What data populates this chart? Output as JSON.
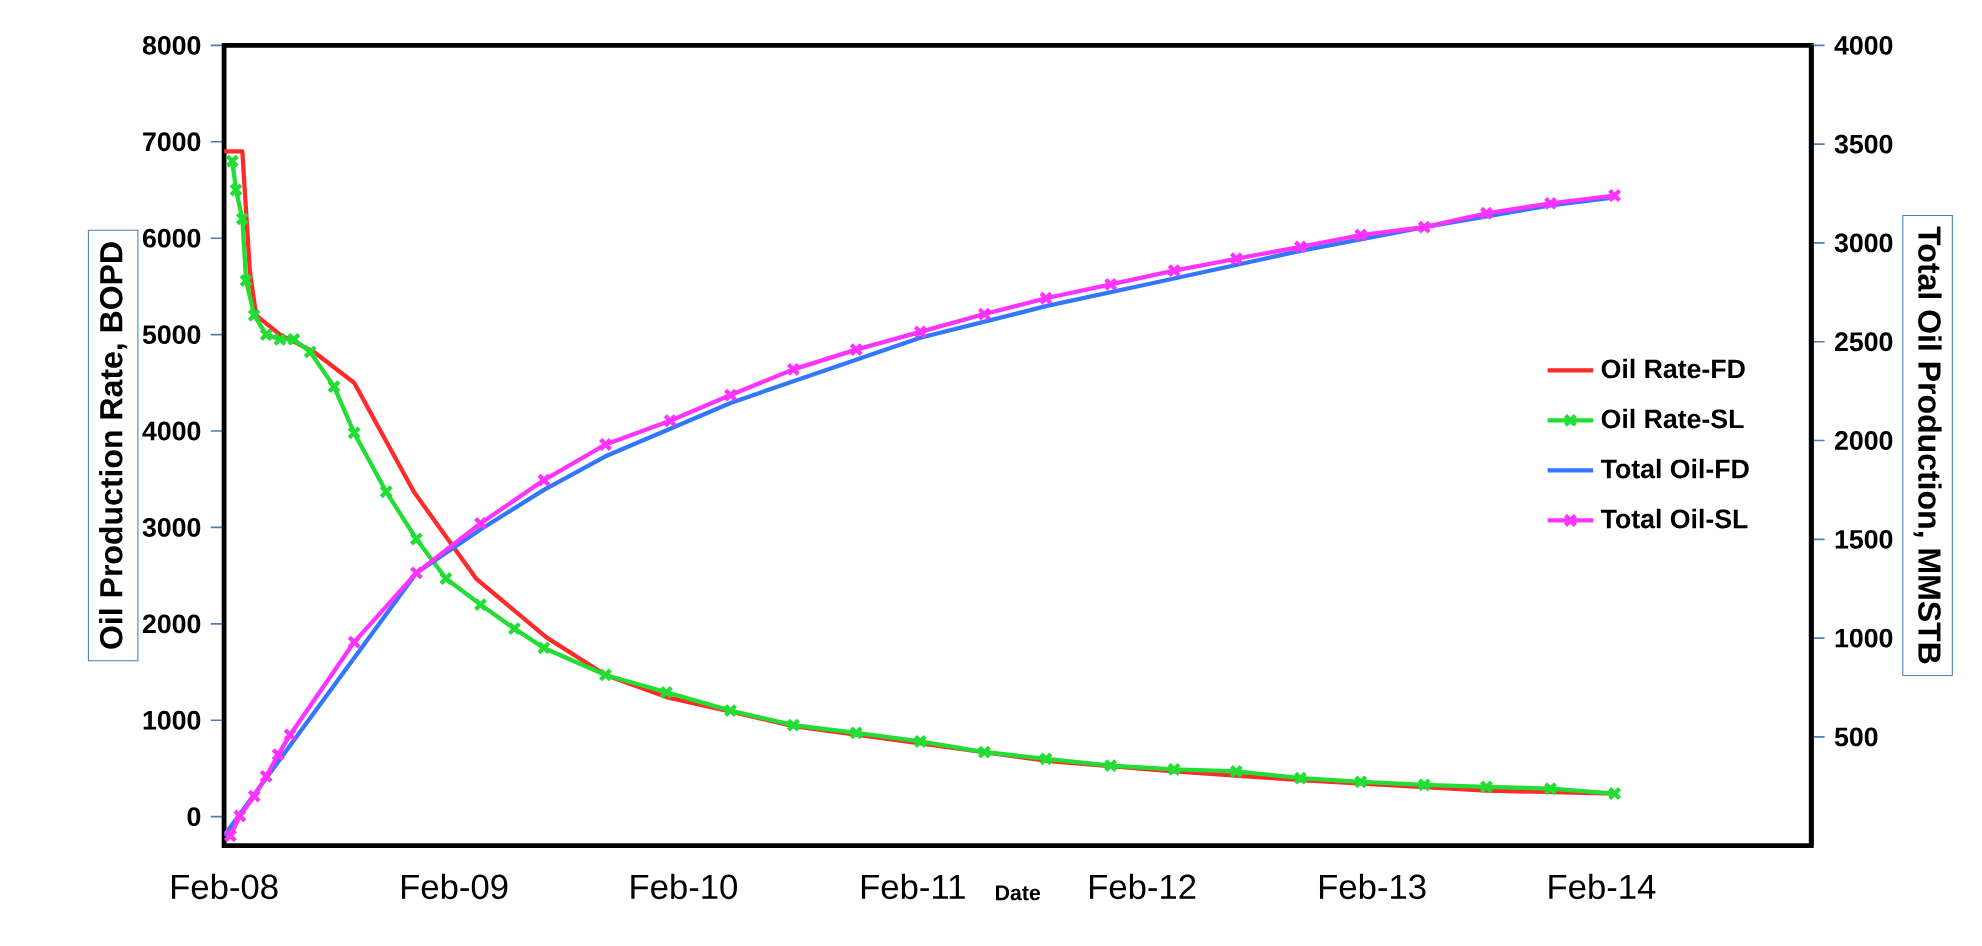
{
  "chart_data": {
    "type": "line",
    "xlabel": "Date",
    "ylabel": "Oil Production Rate, BOPD",
    "y2label": "Total Oil Production, MMSTB",
    "xlim": [
      "2008-02-01",
      "2015-01-01"
    ],
    "xticks": [
      {
        "value": "2008-02-01",
        "label": "Feb-08"
      },
      {
        "value": "2009-02-01",
        "label": "Feb-09"
      },
      {
        "value": "2010-02-01",
        "label": "Feb-10"
      },
      {
        "value": "2011-02-01",
        "label": "Feb-11"
      },
      {
        "value": "2012-02-01",
        "label": "Feb-12"
      },
      {
        "value": "2013-02-01",
        "label": "Feb-13"
      },
      {
        "value": "2014-02-01",
        "label": "Feb-14"
      }
    ],
    "ylim": [
      -300,
      8000
    ],
    "yticks": [
      0,
      1000,
      2000,
      3000,
      4000,
      5000,
      6000,
      7000,
      8000
    ],
    "y2lim": [
      -50,
      4000
    ],
    "y2ticks": [
      500,
      1000,
      1500,
      2000,
      2500,
      3000,
      3500,
      4000
    ],
    "legend": "right",
    "line_style": "solid",
    "series": [
      {
        "name": "Oil Rate-FD",
        "color": "#ff2a2a",
        "marker": "none",
        "x": [
          "2008-02-01",
          "2008-03-01",
          "2008-03-13",
          "2008-03-23",
          "2008-04-30",
          "2008-06-23",
          "2008-08-26",
          "2008-11-29",
          "2009-03-08",
          "2009-06-28",
          "2009-09-30",
          "2010-01-05",
          "2010-04-23",
          "2010-07-26",
          "2011-02-13",
          "2011-09-01",
          "2012-03-23",
          "2012-10-10",
          "2013-08-02",
          "2014-02-22"
        ],
        "values": [
          6900,
          6900,
          5660,
          5200,
          5000,
          4820,
          4500,
          3370,
          2470,
          1860,
          1470,
          1240,
          1080,
          940,
          760,
          580,
          470,
          380,
          270,
          240
        ]
      },
      {
        "name": "Oil Rate-SL",
        "color": "#22dd33",
        "marker": "cross",
        "x": [
          "2008-02-14",
          "2008-02-20",
          "2008-03-01",
          "2008-03-07",
          "2008-03-20",
          "2008-04-08",
          "2008-04-30",
          "2008-05-22",
          "2008-06-17",
          "2008-07-25",
          "2008-08-26",
          "2008-10-16",
          "2008-12-03",
          "2009-01-19",
          "2009-03-15",
          "2009-05-08",
          "2009-06-24",
          "2009-09-30",
          "2010-01-05",
          "2010-04-17",
          "2010-07-26",
          "2010-11-03",
          "2011-02-13",
          "2011-05-26",
          "2011-09-01",
          "2011-12-13",
          "2012-03-23",
          "2012-06-30",
          "2012-10-10",
          "2013-01-14",
          "2013-04-25",
          "2013-08-02",
          "2013-11-12",
          "2014-02-22"
        ],
        "values": [
          6800,
          6500,
          6200,
          5560,
          5200,
          5000,
          4950,
          4950,
          4820,
          4460,
          3980,
          3370,
          2880,
          2470,
          2200,
          1950,
          1750,
          1470,
          1290,
          1100,
          950,
          870,
          780,
          670,
          600,
          530,
          490,
          470,
          400,
          360,
          330,
          310,
          290,
          240
        ]
      },
      {
        "name": "Total Oil-FD",
        "color": "#3377ff",
        "marker": "none",
        "axis": "y2",
        "x": [
          "2008-02-01",
          "2008-08-26",
          "2008-12-03",
          "2009-03-15",
          "2009-06-24",
          "2009-09-30",
          "2010-01-11",
          "2010-04-17",
          "2010-07-26",
          "2011-02-13",
          "2011-09-01",
          "2012-03-23",
          "2012-10-10",
          "2013-04-25",
          "2013-11-12",
          "2014-02-22"
        ],
        "values": [
          0,
          null,
          1330,
          1550,
          1750,
          1920,
          2060,
          2190,
          2300,
          2520,
          2680,
          2820,
          2960,
          3080,
          3190,
          3230
        ]
      },
      {
        "name": "Total Oil-SL",
        "color": "#ff33ff",
        "marker": "cross",
        "axis": "y2",
        "x": [
          "2008-02-11",
          "2008-02-26",
          "2008-03-20",
          "2008-04-08",
          "2008-04-27",
          "2008-05-16",
          "2008-08-26",
          "2008-12-03",
          "2009-03-15",
          "2009-06-24",
          "2009-09-30",
          "2010-01-11",
          "2010-04-17",
          "2010-07-26",
          "2010-11-03",
          "2011-02-13",
          "2011-05-26",
          "2011-09-01",
          "2011-12-13",
          "2012-03-23",
          "2012-06-30",
          "2012-10-10",
          "2013-01-14",
          "2013-04-25",
          "2013-08-02",
          "2013-11-12",
          "2014-02-22"
        ],
        "values": [
          0,
          100,
          200,
          300,
          410,
          510,
          980,
          1330,
          1580,
          1800,
          1980,
          2100,
          2230,
          2360,
          2460,
          2550,
          2640,
          2720,
          2790,
          2860,
          2920,
          2980,
          3040,
          3080,
          3150,
          3200,
          3240
        ]
      }
    ]
  }
}
